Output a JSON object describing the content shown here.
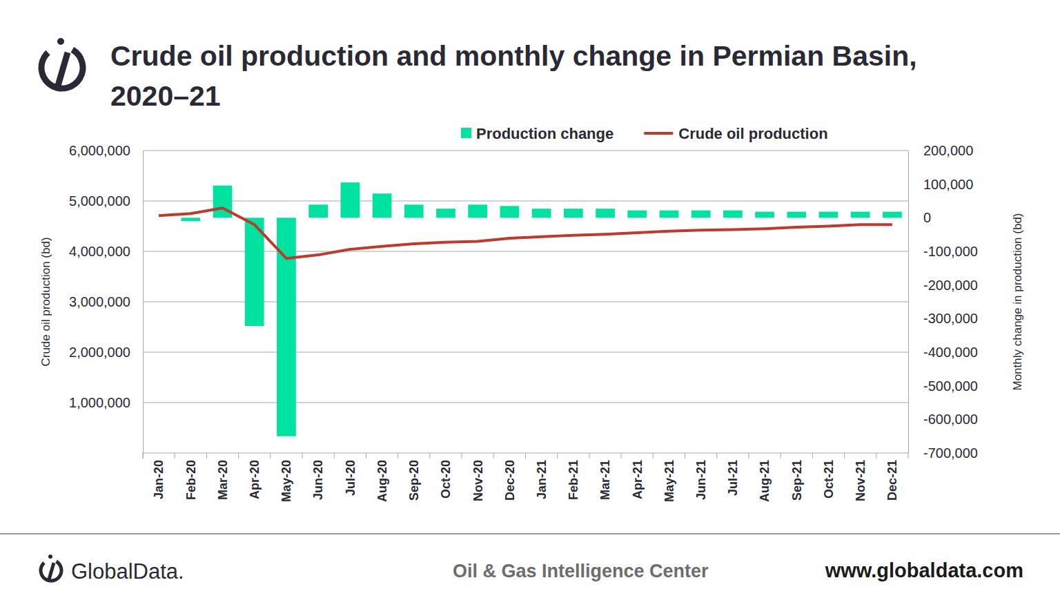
{
  "chart_data": {
    "type": "bar",
    "title": "Crude oil production and monthly change in Permian Basin, 2020–21",
    "y_label": "Crude oil production (bd)",
    "y2_label": "Monthly change in production (bd)",
    "categories": [
      "Jan-20",
      "Feb-20",
      "Mar-20",
      "Apr-20",
      "May-20",
      "Jun-20",
      "Jul-20",
      "Aug-20",
      "Sep-20",
      "Oct-20",
      "Nov-20",
      "Dec-20",
      "Jan-21",
      "Feb-21",
      "Mar-21",
      "Apr-21",
      "May-21",
      "Jun-21",
      "Jul-21",
      "Aug-21",
      "Sep-21",
      "Oct-21",
      "Nov-21",
      "Dec-21"
    ],
    "series": [
      {
        "name": "Production change",
        "type": "bar",
        "axis": "y2",
        "color": "#00e29f",
        "values": [
          null,
          -10000,
          96000,
          -322000,
          -650000,
          39000,
          105000,
          72000,
          39000,
          27000,
          39000,
          35000,
          27000,
          27000,
          27000,
          22000,
          22000,
          22000,
          22000,
          18000,
          18000,
          18000,
          18000,
          18000
        ]
      },
      {
        "name": "Crude oil production",
        "type": "line",
        "color": "#c0392b",
        "values": [
          4710000,
          4750000,
          4860000,
          4530000,
          3860000,
          3930000,
          4040000,
          4100000,
          4150000,
          4180000,
          4200000,
          4260000,
          4290000,
          4320000,
          4340000,
          4370000,
          4400000,
          4420000,
          4430000,
          4450000,
          4480000,
          4500000,
          4530000,
          4530000
        ]
      }
    ],
    "ylim": [
      0,
      6000000
    ],
    "yticks": [
      {
        "value": 1000000,
        "label": "1,000,000"
      },
      {
        "value": 2000000,
        "label": "2,000,000"
      },
      {
        "value": 3000000,
        "label": "3,000,000"
      },
      {
        "value": 4000000,
        "label": "4,000,000"
      },
      {
        "value": 5000000,
        "label": "5,000,000"
      },
      {
        "value": 6000000,
        "label": "6,000,000"
      }
    ],
    "y2lim": [
      -700000,
      200000
    ],
    "y2ticks": [
      {
        "value": 200000,
        "label": "200,000"
      },
      {
        "value": 100000,
        "label": "100,000"
      },
      0,
      {
        "value": -100000,
        "label": "-100,000"
      },
      {
        "value": -200000,
        "label": "-200,000"
      },
      {
        "value": -300000,
        "label": "-300,000"
      },
      {
        "value": -400000,
        "label": "-400,000"
      },
      {
        "value": -500000,
        "label": "-500,000"
      },
      {
        "value": -600000,
        "label": "-600,000"
      },
      {
        "value": -700000,
        "label": "-700,000"
      }
    ],
    "grid": true,
    "legend": "top"
  },
  "footer": {
    "brand": "GlobalData.",
    "center": "Oil & Gas Intelligence Center",
    "url": "www.globaldata.com"
  }
}
